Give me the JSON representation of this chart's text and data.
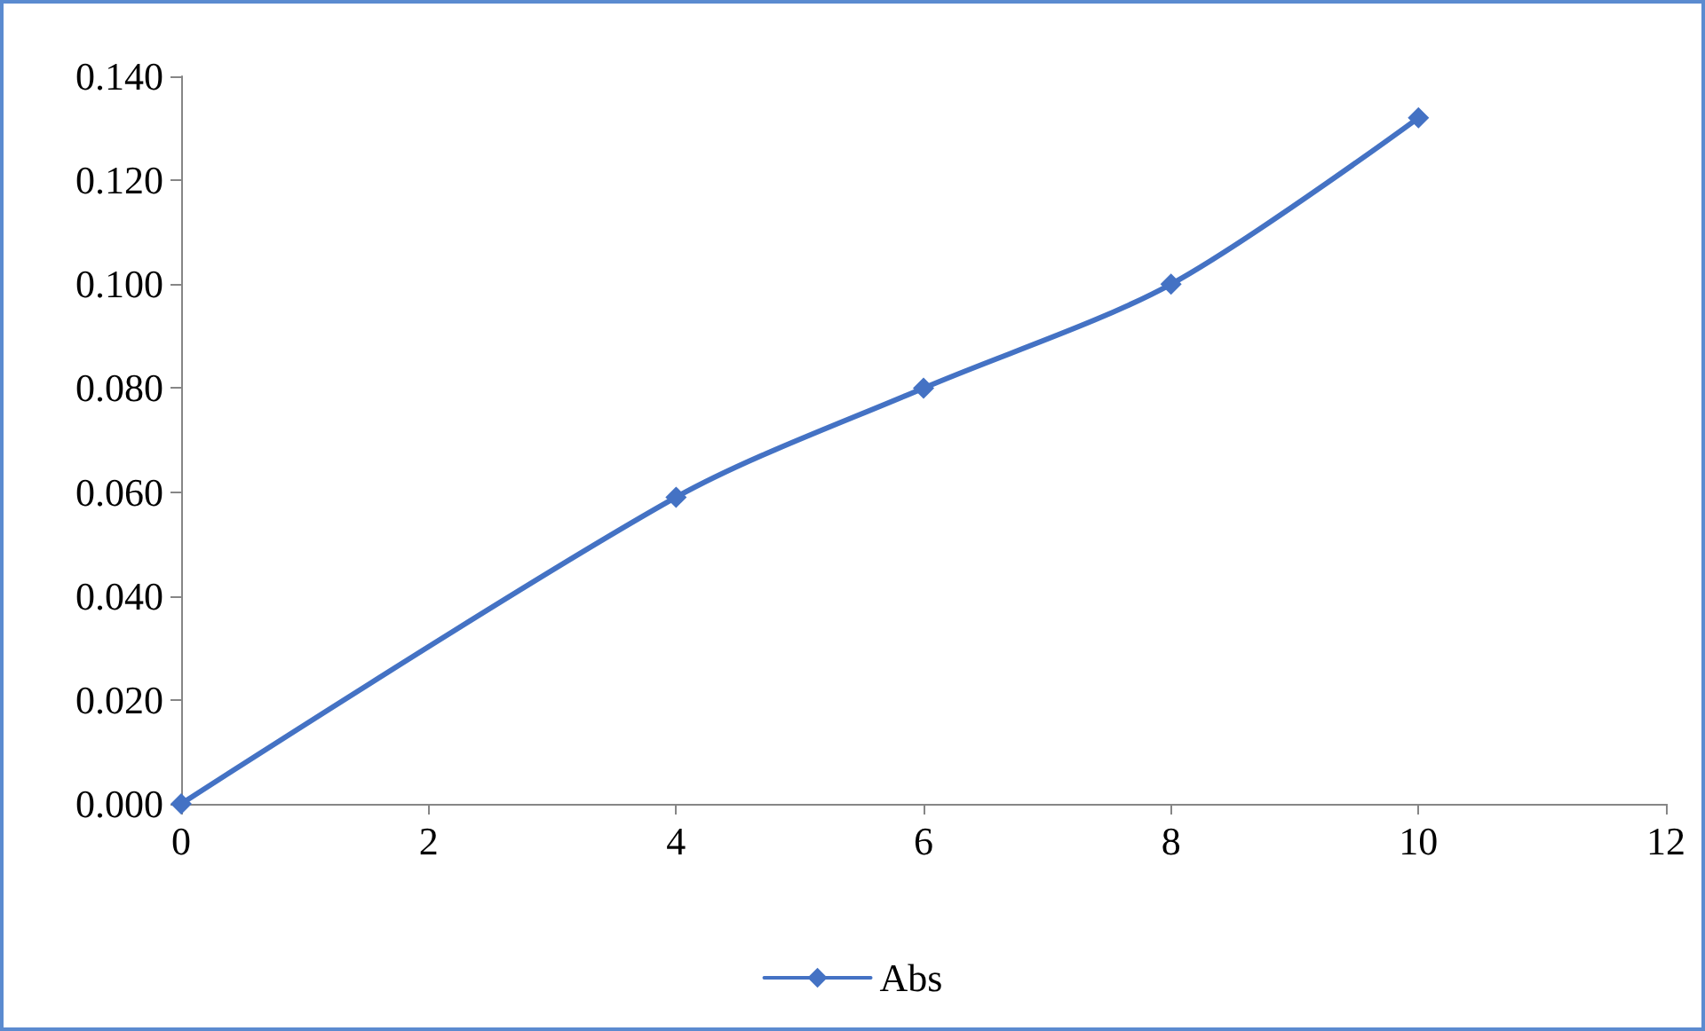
{
  "chart_data": {
    "type": "line",
    "x": [
      0,
      4,
      6,
      8,
      10
    ],
    "series": [
      {
        "name": "Abs",
        "color": "#4472c4",
        "values": [
          0,
          0.059,
          0.08,
          0.1,
          0.132
        ]
      }
    ],
    "xlim": [
      0,
      12
    ],
    "xticks": [
      0,
      2,
      4,
      6,
      8,
      10,
      12
    ],
    "ylim": [
      0,
      0.14
    ],
    "yticks": [
      {
        "value": 0,
        "label": "0.000"
      },
      {
        "value": 0.02,
        "label": "0.020"
      },
      {
        "value": 0.04,
        "label": "0.040"
      },
      {
        "value": 0.06,
        "label": "0.060"
      },
      {
        "value": 0.08,
        "label": "0.080"
      },
      {
        "value": 0.1,
        "label": "0.100"
      },
      {
        "value": 0.12,
        "label": "0.120"
      },
      {
        "value": 0.14,
        "label": "0.140"
      }
    ],
    "grid": false,
    "legend": "bottom",
    "marker": "diamond",
    "line_style": "solid"
  }
}
